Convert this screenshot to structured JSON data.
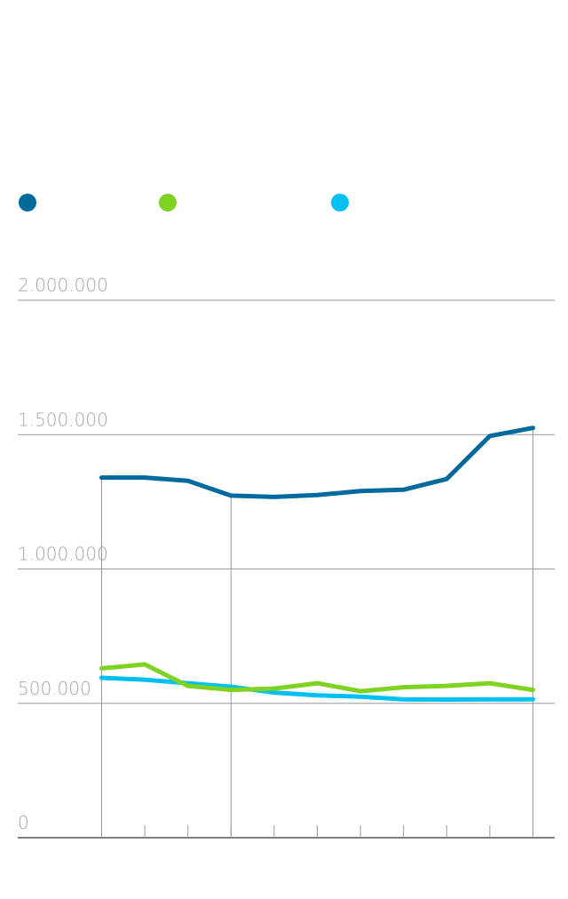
{
  "chart_data": {
    "type": "line",
    "x_count": 11,
    "ylim": [
      0,
      2000000
    ],
    "y_ticks": [
      0,
      500000,
      1000000,
      1500000,
      2000000
    ],
    "y_tick_labels": [
      "0",
      "500.000",
      "1.000.000",
      "1.500.000",
      "2.000.000"
    ],
    "highlight_indices": [
      0,
      3,
      10
    ],
    "grid": true,
    "legend_position": "top-left",
    "series": [
      {
        "color": "#006a9e",
        "values": [
          1340000,
          1340000,
          1328000,
          1273000,
          1268000,
          1275000,
          1290000,
          1295000,
          1335000,
          1495000,
          1525000
        ]
      },
      {
        "color": "#7ed321",
        "values": [
          630000,
          645000,
          565000,
          550000,
          555000,
          575000,
          545000,
          560000,
          565000,
          575000,
          550000
        ]
      },
      {
        "color": "#00c0f3",
        "values": [
          595000,
          588000,
          575000,
          562000,
          540000,
          530000,
          525000,
          515000,
          514000,
          515000,
          515000
        ]
      }
    ]
  }
}
